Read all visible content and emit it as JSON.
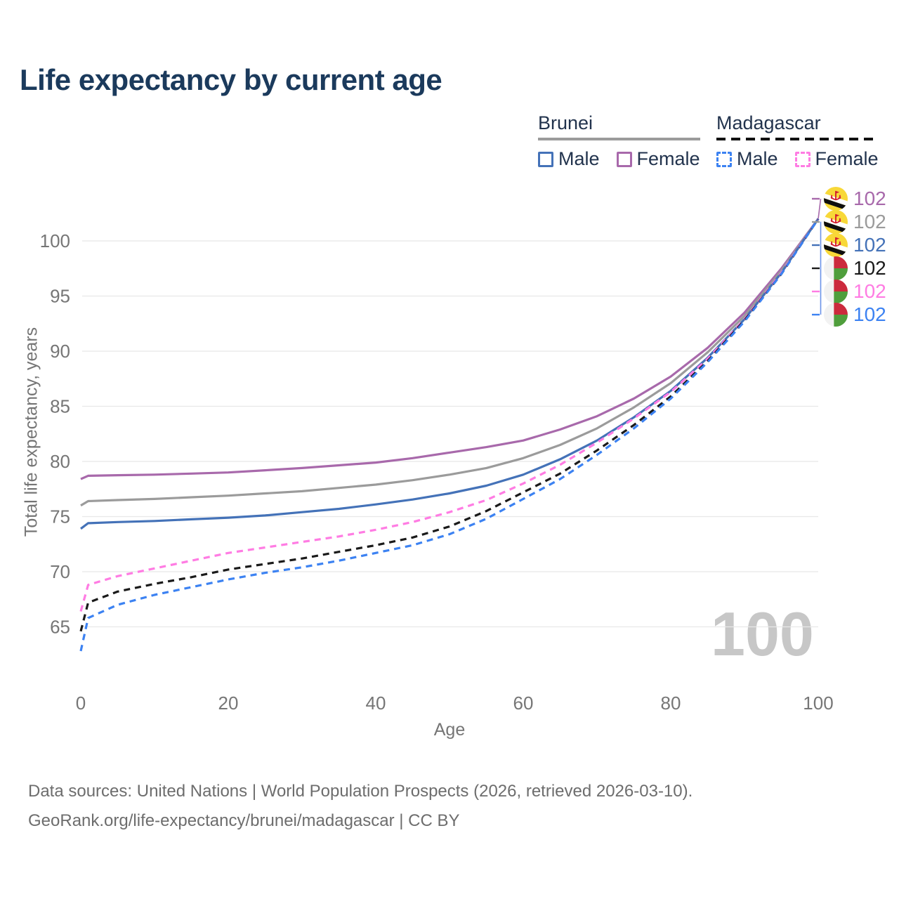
{
  "title": "Life expectancy by current age",
  "watermark_age": "100",
  "legend": {
    "groups": [
      {
        "name": "Brunei",
        "line_style": "solid",
        "underline_color": "#9b9b9b",
        "items": [
          {
            "label": "Male",
            "color": "#4472b8",
            "dashed": false
          },
          {
            "label": "Female",
            "color": "#a869ab",
            "dashed": false
          }
        ]
      },
      {
        "name": "Madagascar",
        "line_style": "dashed",
        "underline_color": "#111111",
        "items": [
          {
            "label": "Male",
            "color": "#3c82f2",
            "dashed": true
          },
          {
            "label": "Female",
            "color": "#ff7ce3",
            "dashed": true
          }
        ]
      }
    ]
  },
  "end_labels": [
    {
      "value": "102",
      "color": "#a869ab",
      "flag": "brunei",
      "series": "Brunei Female"
    },
    {
      "value": "102",
      "color": "#9b9b9b",
      "flag": "brunei",
      "series": "Brunei Both"
    },
    {
      "value": "102",
      "color": "#4472b8",
      "flag": "brunei",
      "series": "Brunei Male"
    },
    {
      "value": "102",
      "color": "#1a1a1a",
      "flag": "madagascar",
      "series": "Madagascar Both"
    },
    {
      "value": "102",
      "color": "#ff7ce3",
      "flag": "madagascar",
      "series": "Madagascar Female"
    },
    {
      "value": "102",
      "color": "#3c82f2",
      "flag": "madagascar",
      "series": "Madagascar Male"
    }
  ],
  "footer": {
    "line1": "Data sources: United Nations | World Population Prospects (2026, retrieved 2026-03-10).",
    "line2": "GeoRank.org/life-expectancy/brunei/madagascar | CC BY"
  },
  "chart_data": {
    "type": "line",
    "title": "Life expectancy by current age",
    "xlabel": "Age",
    "ylabel": "Total life expectancy, years",
    "x_ticks": [
      0,
      20,
      40,
      60,
      80,
      100
    ],
    "y_ticks": [
      65,
      70,
      75,
      80,
      85,
      90,
      95,
      100
    ],
    "xlim": [
      0,
      100
    ],
    "ylim": [
      62,
      103
    ],
    "grid": "horizontal",
    "legend_position": "top-right",
    "x": [
      0,
      1,
      5,
      10,
      15,
      20,
      25,
      30,
      35,
      40,
      45,
      50,
      55,
      60,
      65,
      70,
      75,
      80,
      85,
      90,
      95,
      100
    ],
    "series": [
      {
        "name": "Brunei Female",
        "country": "Brunei",
        "sex": "female",
        "color": "#a869ab",
        "dashed": false,
        "values": [
          78.4,
          78.7,
          78.75,
          78.8,
          78.9,
          79.0,
          79.2,
          79.4,
          79.65,
          79.9,
          80.3,
          80.8,
          81.3,
          81.9,
          82.9,
          84.1,
          85.7,
          87.7,
          90.3,
          93.5,
          97.5,
          102
        ]
      },
      {
        "name": "Brunei Both sexes",
        "country": "Brunei",
        "sex": "both",
        "color": "#9b9b9b",
        "dashed": false,
        "values": [
          76.0,
          76.4,
          76.5,
          76.6,
          76.75,
          76.9,
          77.1,
          77.3,
          77.6,
          77.9,
          78.3,
          78.8,
          79.4,
          80.3,
          81.5,
          83.0,
          84.9,
          87.1,
          89.9,
          93.2,
          97.3,
          102
        ]
      },
      {
        "name": "Brunei Male",
        "country": "Brunei",
        "sex": "male",
        "color": "#4472b8",
        "dashed": false,
        "values": [
          73.9,
          74.4,
          74.5,
          74.6,
          74.75,
          74.9,
          75.1,
          75.4,
          75.7,
          76.1,
          76.55,
          77.1,
          77.8,
          78.8,
          80.2,
          81.9,
          84.0,
          86.4,
          89.4,
          92.9,
          97.1,
          102
        ]
      },
      {
        "name": "Madagascar Female",
        "country": "Madagascar",
        "sex": "female",
        "color": "#ff7ce3",
        "dashed": true,
        "values": [
          66.4,
          68.8,
          69.6,
          70.3,
          71.0,
          71.7,
          72.2,
          72.7,
          73.2,
          73.8,
          74.5,
          75.4,
          76.5,
          78.0,
          79.7,
          81.7,
          83.9,
          86.3,
          89.3,
          92.9,
          97.1,
          102
        ]
      },
      {
        "name": "Madagascar Both sexes",
        "country": "Madagascar",
        "sex": "both",
        "color": "#1a1a1a",
        "dashed": true,
        "values": [
          64.6,
          67.2,
          68.2,
          68.9,
          69.5,
          70.2,
          70.7,
          71.2,
          71.8,
          72.4,
          73.1,
          74.1,
          75.5,
          77.2,
          78.9,
          81.0,
          83.3,
          85.9,
          89.1,
          92.8,
          97.0,
          102
        ]
      },
      {
        "name": "Madagascar Male",
        "country": "Madagascar",
        "sex": "male",
        "color": "#3c82f2",
        "dashed": true,
        "values": [
          62.8,
          65.8,
          67.0,
          67.9,
          68.6,
          69.3,
          69.9,
          70.4,
          71.0,
          71.7,
          72.4,
          73.4,
          74.8,
          76.6,
          78.4,
          80.6,
          83.0,
          85.7,
          89.0,
          92.7,
          97.0,
          102
        ]
      }
    ],
    "end_value_label": 102
  }
}
